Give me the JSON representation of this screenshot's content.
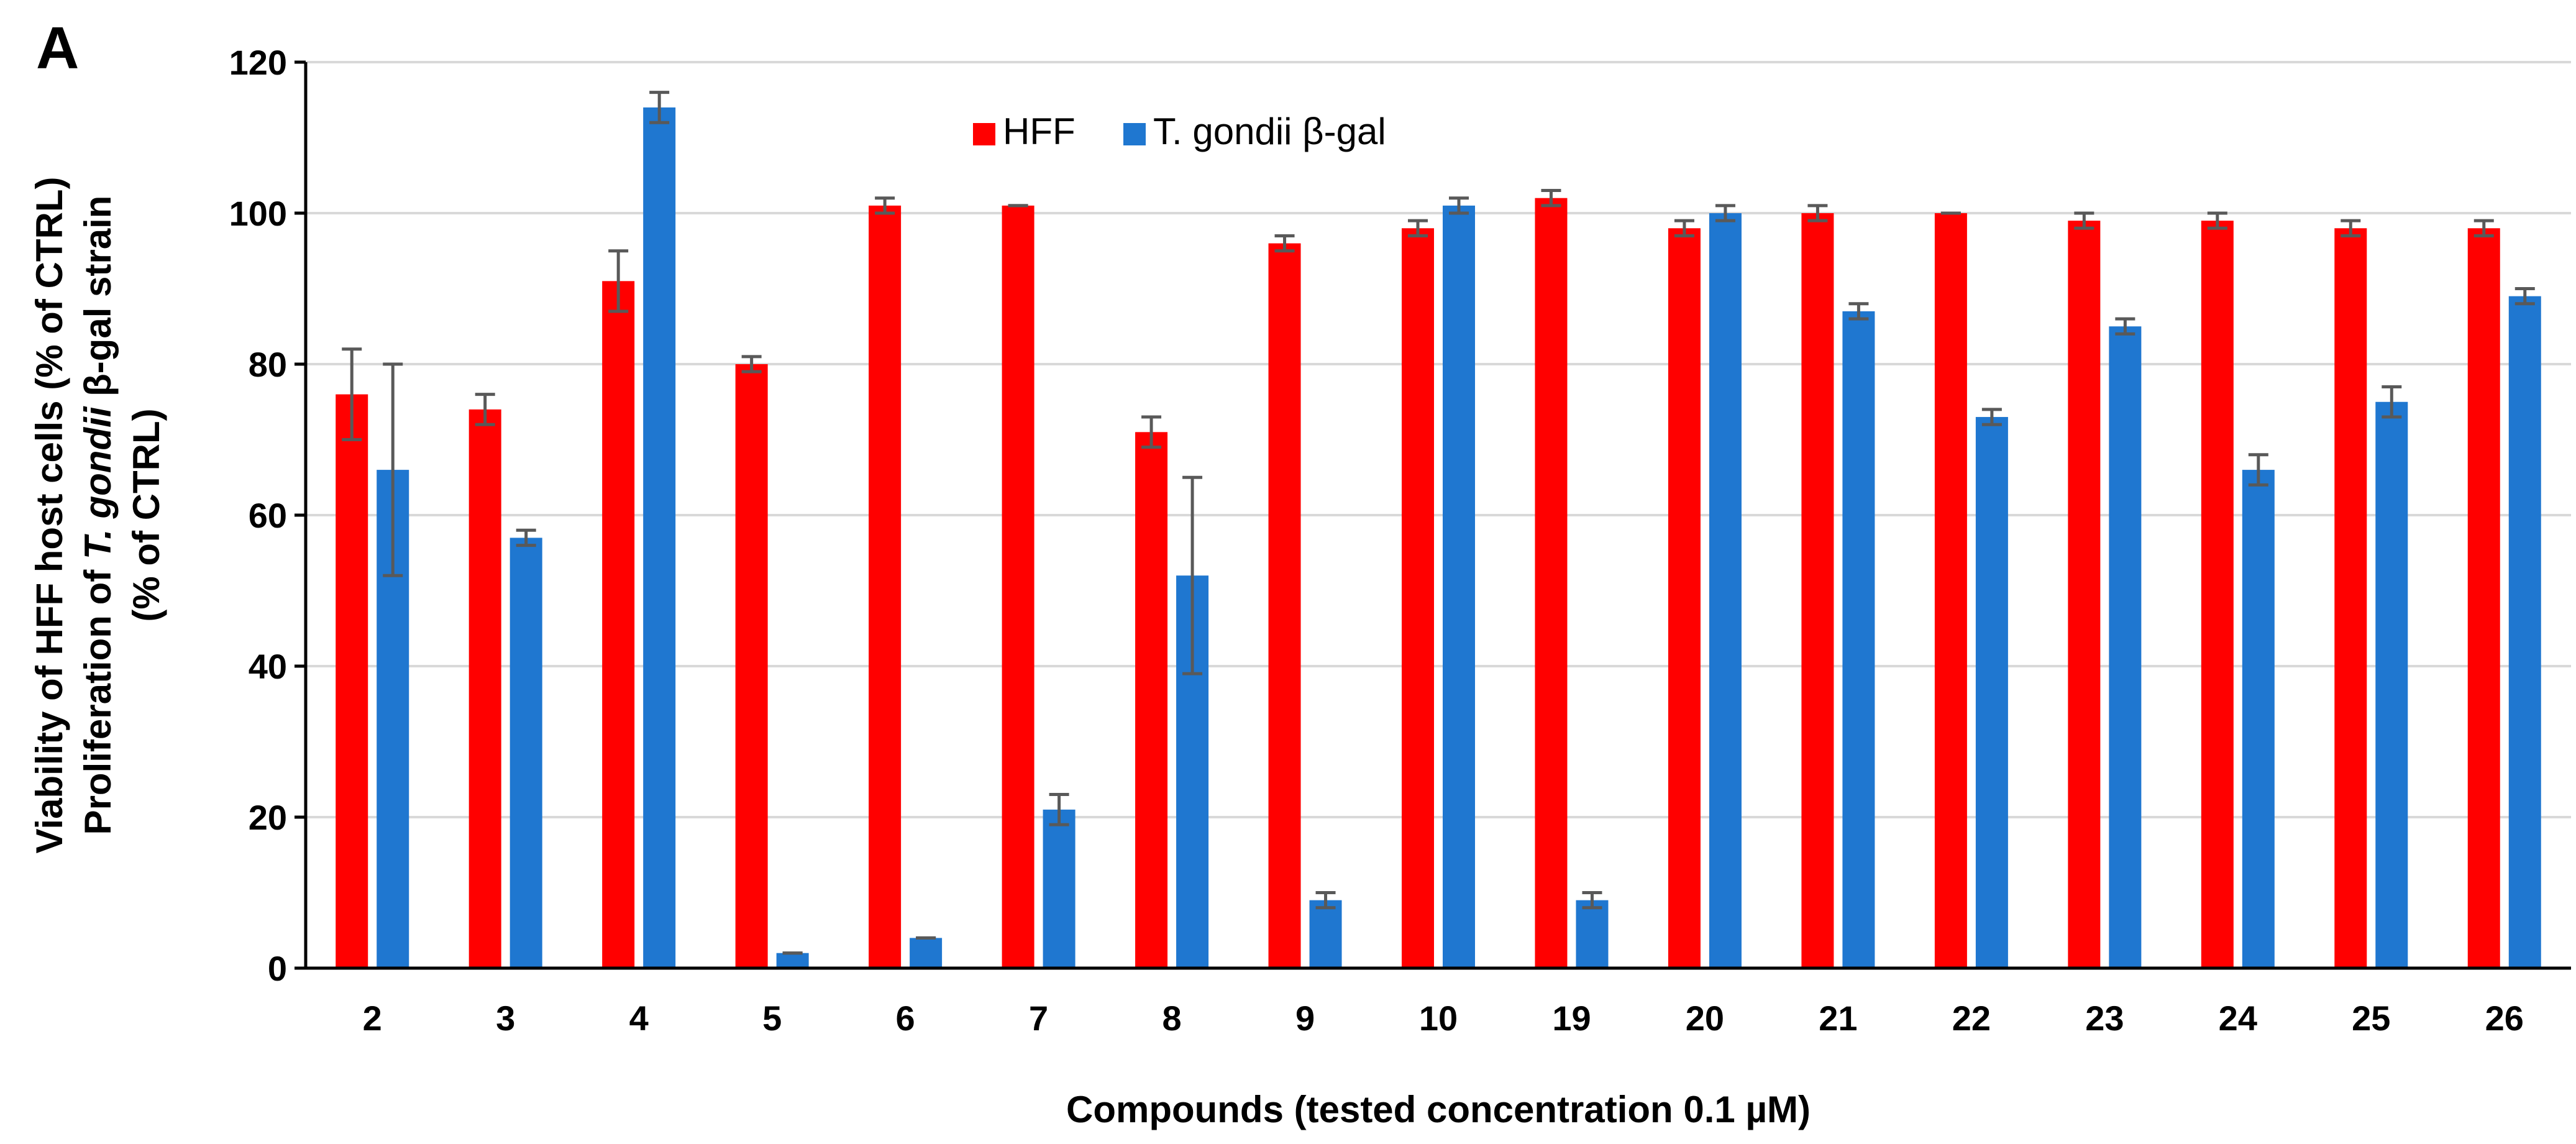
{
  "chart_data": {
    "type": "bar",
    "panel_label": "A",
    "title": "",
    "xlabel": "Compounds (tested concentration 0.1 µM)",
    "ylabel_lines": [
      [
        "Viability of HFF host cells (% of CTRL)"
      ],
      [
        "Proliferation of ",
        "T. gondii",
        " β-gal strain"
      ],
      [
        "(% of CTRL)"
      ]
    ],
    "ylim": [
      0,
      120
    ],
    "yticks": [
      0,
      20,
      40,
      60,
      80,
      100,
      120
    ],
    "grid": true,
    "legend_position": "top-center",
    "categories": [
      "2",
      "3",
      "4",
      "5",
      "6",
      "7",
      "8",
      "9",
      "10",
      "19",
      "20",
      "21",
      "22",
      "23",
      "24",
      "25",
      "26"
    ],
    "series": [
      {
        "name": "HFF",
        "color": "#ff0000",
        "values": [
          76,
          74,
          91,
          80,
          101,
          101,
          71,
          96,
          98,
          102,
          98,
          100,
          100,
          99,
          99,
          98,
          98
        ],
        "errors": [
          6,
          2,
          4,
          1,
          1,
          0,
          2,
          1,
          1,
          1,
          1,
          1,
          0,
          1,
          1,
          1,
          1
        ]
      },
      {
        "name": "T. gondii β-gal",
        "color": "#1f77d0",
        "values": [
          66,
          57,
          114,
          2,
          4,
          21,
          52,
          9,
          101,
          9,
          100,
          87,
          73,
          85,
          66,
          75,
          89
        ],
        "errors": [
          14,
          1,
          2,
          0,
          0,
          2,
          13,
          1,
          1,
          1,
          1,
          1,
          1,
          1,
          2,
          2,
          1
        ]
      }
    ],
    "errorbar_color": "#595959",
    "gridline_color": "#d9d9d9",
    "axis_color": "#000000"
  }
}
